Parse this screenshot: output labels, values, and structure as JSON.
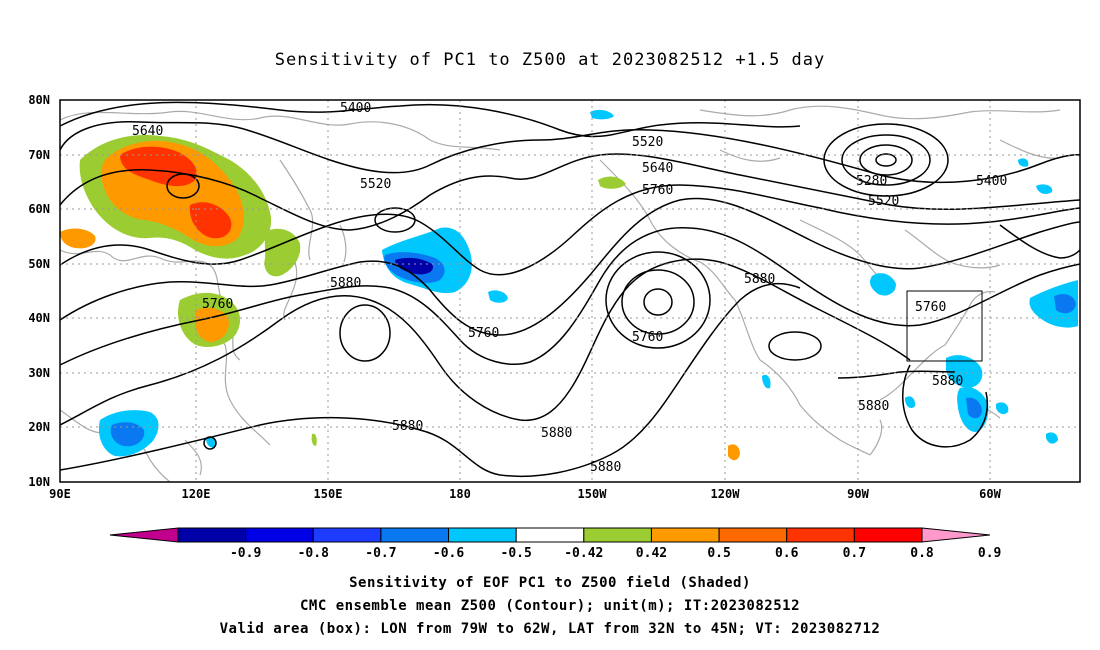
{
  "title": "Sensitivity of PC1 to Z500 at 2023082512 +1.5 day",
  "lat_labels": [
    "80N",
    "70N",
    "60N",
    "50N",
    "40N",
    "30N",
    "20N",
    "10N"
  ],
  "lon_labels": [
    "90E",
    "120E",
    "150E",
    "180",
    "150W",
    "120W",
    "90W",
    "60W"
  ],
  "contour_labels": {
    "c5640": "5640",
    "c5400a": "5400",
    "c5520a": "5520",
    "c5520b": "5520",
    "c5640b": "5640",
    "c5760b": "5760",
    "c5280": "5280",
    "c5400b": "5400",
    "c5520c": "5520",
    "c5760a": "5760",
    "c5880a": "5880",
    "c5760c": "5760",
    "c5760d": "5760",
    "c5880b": "5880",
    "c5760e": "5760",
    "c5880c": "5880",
    "c5880d": "5880",
    "c5880e": "5880",
    "c5880f": "5880",
    "c5880g": "5880"
  },
  "colorbar": {
    "labels": [
      "-0.9",
      "-0.8",
      "-0.7",
      "-0.6",
      "-0.5",
      "-0.42",
      "0.42",
      "0.5",
      "0.6",
      "0.7",
      "0.8",
      "0.9"
    ],
    "colors": [
      "#c0008c",
      "#0000a8",
      "#0000e6",
      "#1e3cff",
      "#0a78f0",
      "#00c8ff",
      "#ffffff",
      "#9bcd32",
      "#ff9900",
      "#ff6a00",
      "#ff3300",
      "#ff0000",
      "#ff99cc"
    ]
  },
  "footer": {
    "line1": "Sensitivity of EOF PC1 to Z500 field (Shaded)",
    "line2": "CMC ensemble mean Z500 (Contour); unit(m); IT:2023082512",
    "line3": "Valid area (box): LON from 79W to 62W, LAT from 32N to 45N; VT: 2023082712"
  }
}
